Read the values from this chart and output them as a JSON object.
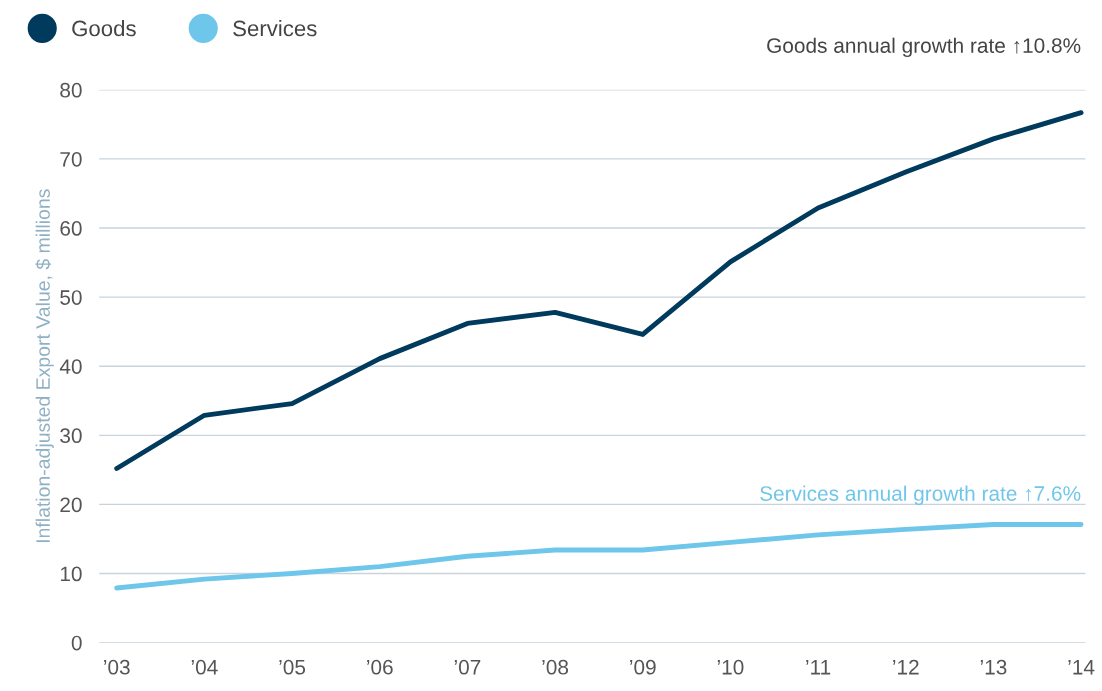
{
  "chart_data": {
    "type": "line",
    "ylabel": "Inflation-adjusted Export Value, $ millions",
    "categories": [
      "’03",
      "’04",
      "’05",
      "’06",
      "’07",
      "’08",
      "’09",
      "’10",
      "’11",
      "’12",
      "’13",
      "’14"
    ],
    "series": [
      {
        "name": "Goods",
        "color": "#003a5d",
        "values": [
          25.2,
          32.9,
          34.6,
          41.1,
          46.2,
          47.8,
          44.6,
          55.1,
          62.9,
          68.1,
          72.9,
          76.7
        ]
      },
      {
        "name": "Services",
        "color": "#6ec6ea",
        "values": [
          7.9,
          9.2,
          10,
          11,
          12.5,
          13.4,
          13.4,
          14.5,
          15.6,
          16.4,
          17.1,
          17.1
        ]
      }
    ],
    "annotations": [
      "Goods annual growth rate ↑10.8%",
      "Services annual growth rate ↑7.6%"
    ],
    "ylim": [
      0,
      80
    ],
    "yticks": [
      0,
      10,
      20,
      30,
      40,
      50,
      60,
      70,
      80
    ],
    "grid": "y",
    "legend": "top left",
    "marker": "none",
    "line_style": "solid"
  }
}
